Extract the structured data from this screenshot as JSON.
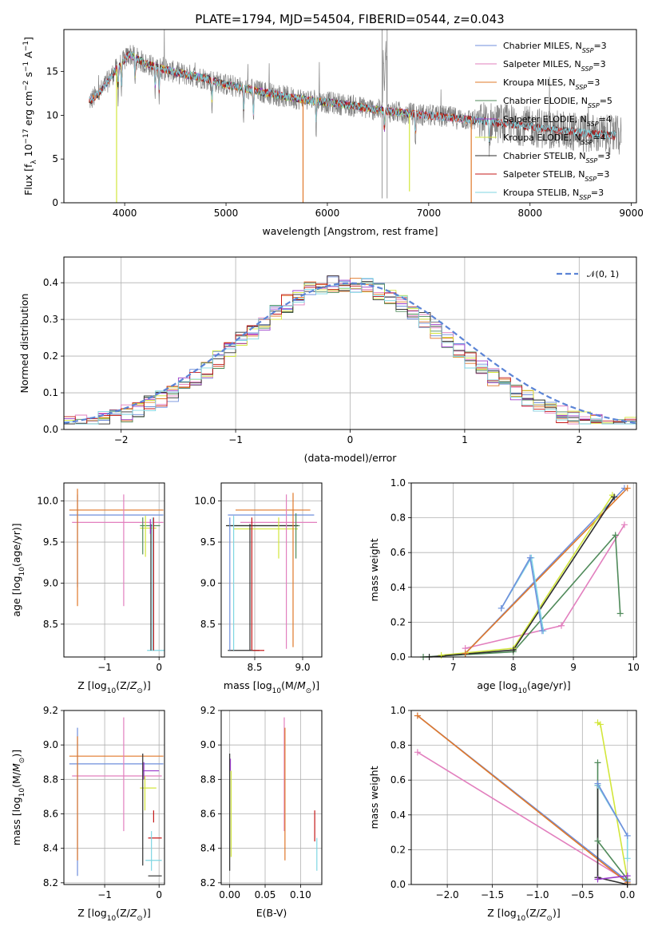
{
  "figure_title": "PLATE=1794, MJD=54504, FIBERID=0544, z=0.043",
  "colors": {
    "Chabrier MILES": "#6f8fdc",
    "Salpeter MILES": "#e27fbe",
    "Kroupa MILES": "#e0782a",
    "Chabrier ELODIE": "#4f8a5a",
    "Salpeter ELODIE": "#9a3bc9",
    "Kroupa ELODIE": "#d2e63b",
    "Chabrier STELIB": "#2e2e2e",
    "Salpeter STELIB": "#c41818",
    "Kroupa STELIB": "#7fd6e2",
    "data": "#808080",
    "normal": "#5b84d6"
  },
  "chart_data": [
    {
      "id": "spectrum",
      "type": "line",
      "xlabel": "wavelength [Angstrom, rest frame]",
      "ylabel": "Flux [f_λ 10^-17 erg cm^-2 s^-1 A^-1]",
      "xlim": [
        3400,
        9050
      ],
      "ylim": [
        0,
        19.8
      ],
      "xticks": [
        4000,
        5000,
        6000,
        7000,
        8000,
        9000
      ],
      "yticks": [
        0,
        5,
        10,
        15
      ],
      "grid": false,
      "legend_position": "top-right",
      "legend": [
        {
          "series": "Chabrier MILES",
          "label": "Chabrier MILES, N",
          "nssp": "=3"
        },
        {
          "series": "Salpeter MILES",
          "label": "Salpeter MILES, N",
          "nssp": "=3"
        },
        {
          "series": "Kroupa MILES",
          "label": "Kroupa MILES, N",
          "nssp": "=3"
        },
        {
          "series": "Chabrier ELODIE",
          "label": "Chabrier ELODIE, N",
          "nssp": "=5"
        },
        {
          "series": "Salpeter ELODIE",
          "label": "Salpeter ELODIE, N",
          "nssp": "=4"
        },
        {
          "series": "Kroupa ELODIE",
          "label": "Kroupa ELODIE, N",
          "nssp": "=4"
        },
        {
          "series": "Chabrier STELIB",
          "label": "Chabrier STELIB, N",
          "nssp": "=3"
        },
        {
          "series": "Salpeter STELIB",
          "label": "Salpeter STELIB, N",
          "nssp": "=3"
        },
        {
          "series": "Kroupa STELIB",
          "label": "Kroupa STELIB, N",
          "nssp": "=3"
        }
      ],
      "continuum_model": [
        [
          3650,
          11.6
        ],
        [
          3750,
          12.5
        ],
        [
          3900,
          15.0
        ],
        [
          4050,
          17.0
        ],
        [
          4200,
          15.9
        ],
        [
          4500,
          14.9
        ],
        [
          4800,
          14.2
        ],
        [
          5000,
          13.5
        ],
        [
          5300,
          12.8
        ],
        [
          5600,
          12.1
        ],
        [
          5900,
          11.6
        ],
        [
          6200,
          11.2
        ],
        [
          6500,
          10.6
        ],
        [
          6800,
          10.2
        ],
        [
          7100,
          9.9
        ],
        [
          7400,
          9.5
        ],
        [
          7800,
          9.0
        ],
        [
          8200,
          8.4
        ],
        [
          8600,
          7.9
        ],
        [
          8900,
          7.6
        ]
      ],
      "data_x_range": [
        3650,
        8900
      ],
      "model_x_range": {
        "MILES": [
          3650,
          7420
        ],
        "ELODIE": [
          3900,
          6800
        ],
        "STELIB": [
          3650,
          8850
        ]
      },
      "spikes": [
        {
          "x": 3920,
          "y": 0,
          "series": "Kroupa ELODIE"
        },
        {
          "x": 5760,
          "y": 0,
          "series": "Kroupa MILES"
        },
        {
          "x": 6810,
          "y": 1.3,
          "series": "Kroupa ELODIE"
        },
        {
          "x": 7420,
          "y": 0,
          "series": "Kroupa MILES"
        }
      ]
    },
    {
      "id": "residuals",
      "type": "line",
      "xlabel": "(data-model)/error",
      "ylabel": "Normed distribution",
      "xlim": [
        -2.5,
        2.5
      ],
      "ylim": [
        0,
        0.47
      ],
      "xticks": [
        -2,
        -1,
        0,
        1,
        2
      ],
      "yticks": [
        0.0,
        0.1,
        0.2,
        0.3,
        0.4
      ],
      "grid": true,
      "legend_position": "top-right",
      "legend_label": "𝒩(0, 1)",
      "normal": {
        "mean": 0,
        "sigma": 1
      },
      "bin_width": 0.1,
      "hist_center": -0.05,
      "hist_sigma": 0.9,
      "hist_peak": 0.4
    },
    {
      "id": "age_vs_Z",
      "type": "scatter",
      "xlabel": "Z [log10(Z/Z⊙)]",
      "ylabel": "age  [log10(age/yr)]",
      "xlim": [
        -1.75,
        0.1
      ],
      "ylim": [
        8.1,
        10.22
      ],
      "xticks": [
        -1,
        0
      ],
      "yticks": [
        8.5,
        9.0,
        9.5,
        10.0
      ],
      "grid": true,
      "segments": [
        {
          "series": "Kroupa MILES",
          "type": "h",
          "y": 9.89,
          "x1": -1.65,
          "x2": 0.08
        },
        {
          "series": "Chabrier MILES",
          "type": "h",
          "y": 9.83,
          "x1": -1.65,
          "x2": 0.08
        },
        {
          "series": "Salpeter MILES",
          "type": "h",
          "y": 9.74,
          "x1": -1.6,
          "x2": 0.08
        },
        {
          "series": "Chabrier ELODIE",
          "type": "h",
          "y": 9.7,
          "x1": -0.35,
          "x2": 0.02
        },
        {
          "series": "Kroupa ELODIE",
          "type": "h",
          "y": 9.67,
          "x1": -0.35,
          "x2": -0.05
        },
        {
          "series": "Kroupa STELIB",
          "type": "h",
          "y": 8.18,
          "x1": -0.22,
          "x2": 0.1
        },
        {
          "series": "Chabrier MILES",
          "type": "v",
          "x": -1.5,
          "y1": 8.95,
          "y2": 10.08
        },
        {
          "series": "Kroupa MILES",
          "type": "v",
          "x": -1.5,
          "y1": 8.72,
          "y2": 10.15
        },
        {
          "series": "Salpeter MILES",
          "type": "v",
          "x": -0.65,
          "y1": 8.72,
          "y2": 10.08
        },
        {
          "series": "Chabrier ELODIE",
          "type": "v",
          "x": -0.3,
          "y1": 9.35,
          "y2": 9.8
        },
        {
          "series": "Kroupa ELODIE",
          "type": "v",
          "x": -0.25,
          "y1": 9.32,
          "y2": 9.82
        },
        {
          "series": "Chabrier STELIB",
          "type": "v",
          "x": -0.15,
          "y1": 8.18,
          "y2": 9.72
        },
        {
          "series": "Salpeter ELODIE",
          "type": "v",
          "x": -0.16,
          "y1": 9.6,
          "y2": 9.78
        },
        {
          "series": "Salpeter STELIB",
          "type": "v",
          "x": -0.1,
          "y1": 8.18,
          "y2": 9.8
        },
        {
          "series": "Kroupa STELIB",
          "type": "v",
          "x": -0.12,
          "y1": 8.18,
          "y2": 9.8
        }
      ]
    },
    {
      "id": "age_vs_mass",
      "type": "scatter",
      "xlabel": "mass [log10(M/M⊙)]",
      "ylabel": "",
      "xlim": [
        8.15,
        9.2
      ],
      "ylim": [
        8.1,
        10.22
      ],
      "xticks": [
        8.5,
        9.0
      ],
      "yticks": [
        8.5,
        9.0,
        9.5,
        10.0
      ],
      "grid": true,
      "segments": [
        {
          "series": "Kroupa MILES",
          "type": "h",
          "y": 9.89,
          "x1": 8.3,
          "x2": 9.08
        },
        {
          "series": "Chabrier MILES",
          "type": "h",
          "y": 9.83,
          "x1": 8.22,
          "x2": 9.12
        },
        {
          "series": "Salpeter MILES",
          "type": "h",
          "y": 9.74,
          "x1": 8.35,
          "x2": 9.15
        },
        {
          "series": "Chabrier ELODIE",
          "type": "h",
          "y": 9.7,
          "x1": 8.22,
          "x2": 8.97
        },
        {
          "series": "Chabrier STELIB",
          "type": "h",
          "y": 9.7,
          "x1": 8.2,
          "x2": 8.95
        },
        {
          "series": "Kroupa ELODIE",
          "type": "h",
          "y": 9.66,
          "x1": 8.28,
          "x2": 8.95
        },
        {
          "series": "Chabrier STELIB",
          "type": "h",
          "y": 8.18,
          "x1": 8.22,
          "x2": 8.55
        },
        {
          "series": "Salpeter STELIB",
          "type": "h",
          "y": 8.18,
          "x1": 8.48,
          "x2": 8.6
        },
        {
          "series": "Chabrier MILES",
          "type": "v",
          "x": 8.24,
          "y1": 8.18,
          "y2": 9.8
        },
        {
          "series": "Kroupa STELIB",
          "type": "v",
          "x": 8.28,
          "y1": 8.18,
          "y2": 9.82
        },
        {
          "series": "Chabrier STELIB",
          "type": "v",
          "x": 8.45,
          "y1": 8.18,
          "y2": 9.72
        },
        {
          "series": "Salpeter STELIB",
          "type": "v",
          "x": 8.47,
          "y1": 8.18,
          "y2": 9.8
        },
        {
          "series": "Salpeter MILES",
          "type": "v",
          "x": 8.83,
          "y1": 8.2,
          "y2": 10.08
        },
        {
          "series": "Kroupa ELODIE",
          "type": "v",
          "x": 8.75,
          "y1": 9.3,
          "y2": 9.8
        },
        {
          "series": "Kroupa MILES",
          "type": "v",
          "x": 8.9,
          "y1": 8.22,
          "y2": 10.1
        },
        {
          "series": "Chabrier ELODIE",
          "type": "v",
          "x": 8.93,
          "y1": 9.3,
          "y2": 9.85
        }
      ]
    },
    {
      "id": "mass_weight_vs_age",
      "type": "line",
      "xlabel": "age  [log10(age/yr)]",
      "ylabel": "mass weight",
      "xlim": [
        6.3,
        10.05
      ],
      "ylim": [
        0,
        1.0
      ],
      "xticks": [
        7,
        8,
        9,
        10
      ],
      "yticks": [
        0.0,
        0.2,
        0.4,
        0.6,
        0.8,
        1.0
      ],
      "grid": true,
      "series": [
        {
          "name": "Salpeter MILES",
          "points": [
            [
              7.2,
              0.05
            ],
            [
              8.8,
              0.18
            ],
            [
              9.85,
              0.76
            ]
          ]
        },
        {
          "name": "Chabrier MILES",
          "points": [
            [
              7.2,
              0.02
            ],
            [
              9.85,
              0.97
            ]
          ]
        },
        {
          "name": "Kroupa MILES",
          "points": [
            [
              7.2,
              0.02
            ],
            [
              9.9,
              0.97
            ]
          ]
        },
        {
          "name": "Chabrier ELODIE",
          "points": [
            [
              6.5,
              0.0
            ],
            [
              8.0,
              0.03
            ],
            [
              9.7,
              0.7
            ],
            [
              9.78,
              0.25
            ]
          ]
        },
        {
          "name": "Kroupa ELODIE",
          "points": [
            [
              6.8,
              0.01
            ],
            [
              8.0,
              0.05
            ],
            [
              9.65,
              0.93
            ]
          ]
        },
        {
          "name": "Chabrier STELIB",
          "points": [
            [
              6.6,
              0.0
            ],
            [
              8.0,
              0.04
            ],
            [
              9.68,
              0.92
            ]
          ]
        },
        {
          "name": "Kroupa STELIB",
          "points": [
            [
              7.8,
              0.28
            ],
            [
              8.3,
              0.57
            ],
            [
              8.5,
              0.15
            ]
          ]
        },
        {
          "name": "Chabrier MILES",
          "points": [
            [
              7.8,
              0.28
            ],
            [
              8.28,
              0.57
            ],
            [
              8.48,
              0.15
            ]
          ]
        }
      ]
    },
    {
      "id": "mass_vs_Z",
      "type": "scatter",
      "xlabel": "Z [log10(Z/Z⊙)]",
      "ylabel": "mass [log10(M/M⊙)]",
      "xlim": [
        -1.75,
        0.1
      ],
      "ylim": [
        8.19,
        9.2
      ],
      "xticks": [
        -1,
        0
      ],
      "yticks": [
        8.2,
        8.4,
        8.6,
        8.8,
        9.0,
        9.2
      ],
      "grid": true,
      "segments": [
        {
          "series": "Kroupa MILES",
          "type": "h",
          "y": 8.935,
          "x1": -1.65,
          "x2": 0.08
        },
        {
          "series": "Chabrier MILES",
          "type": "h",
          "y": 8.89,
          "x1": -1.65,
          "x2": 0.08
        },
        {
          "series": "Salpeter MILES",
          "type": "h",
          "y": 8.82,
          "x1": -1.6,
          "x2": 0.05
        },
        {
          "series": "Salpeter ELODIE",
          "type": "h",
          "y": 8.85,
          "x1": -0.3,
          "x2": 0.0
        },
        {
          "series": "Kroupa ELODIE",
          "type": "h",
          "y": 8.75,
          "x1": -0.35,
          "x2": -0.05
        },
        {
          "series": "Salpeter STELIB",
          "type": "h",
          "y": 8.46,
          "x1": -0.2,
          "x2": 0.05
        },
        {
          "series": "Kroupa STELIB",
          "type": "h",
          "y": 8.33,
          "x1": -0.25,
          "x2": 0.05
        },
        {
          "series": "Chabrier STELIB",
          "type": "h",
          "y": 8.24,
          "x1": -0.2,
          "x2": 0.05
        },
        {
          "series": "Chabrier MILES",
          "type": "v",
          "x": -1.5,
          "y1": 8.24,
          "y2": 9.1
        },
        {
          "series": "Kroupa MILES",
          "type": "v",
          "x": -1.5,
          "y1": 8.33,
          "y2": 9.05
        },
        {
          "series": "Salpeter MILES",
          "type": "v",
          "x": -0.65,
          "y1": 8.5,
          "y2": 9.16
        },
        {
          "series": "Chabrier STELIB",
          "type": "v",
          "x": -0.3,
          "y1": 8.3,
          "y2": 8.95
        },
        {
          "series": "Salpeter ELODIE",
          "type": "v",
          "x": -0.28,
          "y1": 8.8,
          "y2": 8.9
        },
        {
          "series": "Kroupa ELODIE",
          "type": "v",
          "x": -0.26,
          "y1": 8.62,
          "y2": 8.82
        },
        {
          "series": "Salpeter STELIB",
          "type": "v",
          "x": -0.1,
          "y1": 8.55,
          "y2": 8.62
        },
        {
          "series": "Kroupa STELIB",
          "type": "v",
          "x": -0.14,
          "y1": 8.27,
          "y2": 8.5
        }
      ]
    },
    {
      "id": "mass_vs_ebv",
      "type": "scatter",
      "xlabel": "E(B-V)",
      "ylabel": "",
      "xlim": [
        -0.012,
        0.13
      ],
      "ylim": [
        8.19,
        9.2
      ],
      "xticks": [
        0.0,
        0.05,
        0.1
      ],
      "yticks": [
        8.2,
        8.4,
        8.6,
        8.8,
        9.0,
        9.2
      ],
      "grid": true,
      "segments": [
        {
          "series": "Chabrier STELIB",
          "type": "v",
          "x": 0.0,
          "y1": 8.27,
          "y2": 8.95
        },
        {
          "series": "Salpeter ELODIE",
          "type": "v",
          "x": 0.001,
          "y1": 8.85,
          "y2": 8.92
        },
        {
          "series": "Kroupa ELODIE",
          "type": "v",
          "x": 0.002,
          "y1": 8.35,
          "y2": 8.85
        },
        {
          "series": "Salpeter MILES",
          "type": "v",
          "x": 0.077,
          "y1": 8.5,
          "y2": 9.16
        },
        {
          "series": "Kroupa MILES",
          "type": "v",
          "x": 0.078,
          "y1": 8.33,
          "y2": 9.1
        },
        {
          "series": "Salpeter STELIB",
          "type": "v",
          "x": 0.12,
          "y1": 8.44,
          "y2": 8.62
        },
        {
          "series": "Kroupa STELIB",
          "type": "v",
          "x": 0.123,
          "y1": 8.27,
          "y2": 8.46
        }
      ]
    },
    {
      "id": "mass_weight_vs_Z",
      "type": "line",
      "xlabel": "Z [log10(Z/Z⊙)]",
      "ylabel": "mass weight",
      "xlim": [
        -2.4,
        0.1
      ],
      "ylim": [
        0,
        1.0
      ],
      "xticks": [
        -2.0,
        -1.5,
        -1.0,
        -0.5,
        0.0
      ],
      "yticks": [
        0.0,
        0.2,
        0.4,
        0.6,
        0.8,
        1.0
      ],
      "grid": true,
      "series": [
        {
          "name": "Salpeter MILES",
          "points": [
            [
              -2.33,
              0.76
            ],
            [
              0.0,
              0.02
            ]
          ]
        },
        {
          "name": "Chabrier MILES",
          "points": [
            [
              -2.33,
              0.97
            ],
            [
              0.0,
              0.02
            ]
          ]
        },
        {
          "name": "Kroupa MILES",
          "points": [
            [
              -2.33,
              0.97
            ],
            [
              0.0,
              0.01
            ]
          ]
        },
        {
          "name": "Kroupa ELODIE",
          "points": [
            [
              -0.33,
              0.93
            ],
            [
              -0.3,
              0.92
            ],
            [
              0.0,
              0.03
            ]
          ]
        },
        {
          "name": "Chabrier ELODIE",
          "points": [
            [
              -0.33,
              0.7
            ],
            [
              -0.33,
              0.25
            ],
            [
              0.0,
              0.03
            ]
          ]
        },
        {
          "name": "Chabrier STELIB",
          "points": [
            [
              -0.33,
              0.57
            ],
            [
              -0.33,
              0.04
            ],
            [
              0.0,
              0.0
            ]
          ]
        },
        {
          "name": "Kroupa STELIB",
          "points": [
            [
              -0.33,
              0.57
            ],
            [
              0.0,
              0.28
            ],
            [
              0.0,
              0.15
            ]
          ]
        },
        {
          "name": "Chabrier MILES",
          "points": [
            [
              -0.33,
              0.58
            ],
            [
              0.0,
              0.28
            ]
          ]
        },
        {
          "name": "Salpeter ELODIE",
          "points": [
            [
              -0.33,
              0.03
            ],
            [
              0.0,
              0.05
            ]
          ]
        }
      ]
    }
  ]
}
